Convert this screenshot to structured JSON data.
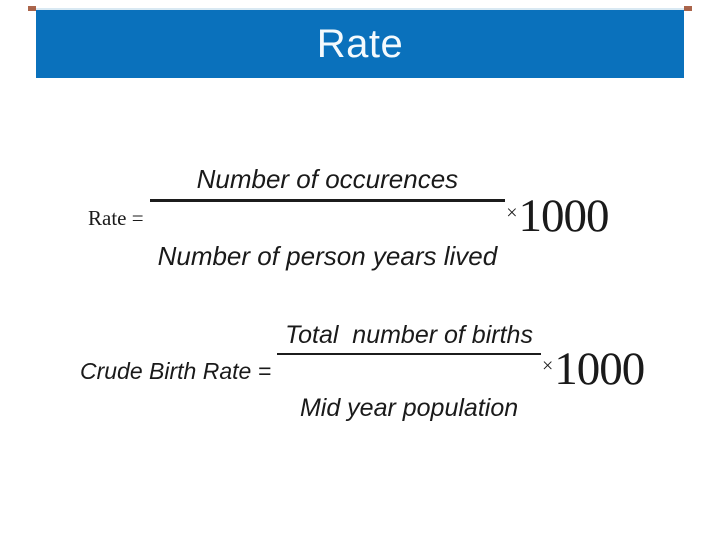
{
  "slide": {
    "title": "Rate",
    "title_bar_color": "#0a71bc",
    "background_color": "#ffffff",
    "accent_line_color": "#cfe4f0",
    "accent_tip_color": "#9c4a2c",
    "text_color": "#1a1a1a"
  },
  "formulas": [
    {
      "lhs": "Rate =",
      "numerator": "Number of occurences",
      "denominator": "Number of person years lived",
      "multiplier_sign": "×",
      "multiplier_value": "1000"
    },
    {
      "lhs": "Crude Birth Rate =",
      "numerator": "Total  number of births",
      "denominator": "Mid year population",
      "multiplier_sign": "×",
      "multiplier_value": "1000"
    }
  ]
}
